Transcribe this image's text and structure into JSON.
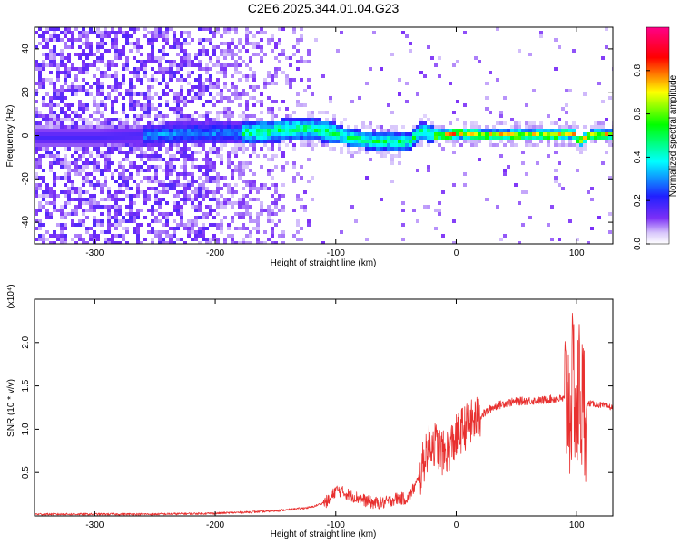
{
  "figure": {
    "title": "C2E6.2025.344.01.04.G23"
  },
  "colors": {
    "snr_line": "#e8302f",
    "axis": "#000000",
    "background": "#ffffff"
  },
  "chart_data": [
    {
      "type": "heatmap",
      "title": "",
      "xlabel": "Height of straight line (km)",
      "ylabel": "Frequency (Hz)",
      "xlim": [
        -350,
        130
      ],
      "ylim": [
        -50,
        50
      ],
      "x_ticks": [
        -300,
        -200,
        -100,
        0,
        100
      ],
      "x_tick_labels": [
        "-300",
        "-200",
        "-100",
        "0",
        "100"
      ],
      "y_ticks": [
        -40,
        -20,
        0,
        20,
        40
      ],
      "y_tick_labels": [
        "-40",
        "-20",
        "0",
        "20",
        "40"
      ],
      "colorbar": {
        "label": "Normalized spectral amplitude",
        "range": [
          0,
          1
        ],
        "ticks": [
          0.0,
          0.2,
          0.4,
          0.6,
          0.8
        ],
        "tick_labels": [
          "0.0",
          "0.2",
          "0.4",
          "0.6",
          "0.8"
        ],
        "colormap": [
          "#ffffff",
          "#7b2ff7",
          "#0000ff",
          "#00ffff",
          "#00ff00",
          "#ffff00",
          "#ff0000",
          "#ff00aa"
        ]
      },
      "ridge": [
        [
          -350,
          0
        ],
        [
          -300,
          0
        ],
        [
          -260,
          1
        ],
        [
          -220,
          2
        ],
        [
          -180,
          2
        ],
        [
          -150,
          3
        ],
        [
          -130,
          4
        ],
        [
          -110,
          3
        ],
        [
          -90,
          0
        ],
        [
          -70,
          -2
        ],
        [
          -55,
          -2
        ],
        [
          -40,
          -2
        ],
        [
          -30,
          3
        ],
        [
          -20,
          1
        ],
        [
          -10,
          1
        ],
        [
          0,
          2
        ],
        [
          20,
          1
        ],
        [
          40,
          1
        ],
        [
          60,
          1
        ],
        [
          80,
          1
        ],
        [
          95,
          2
        ],
        [
          100,
          -2
        ],
        [
          110,
          1
        ],
        [
          130,
          1
        ]
      ],
      "grid": false,
      "legend": "none"
    },
    {
      "type": "line",
      "title": "",
      "xlabel": "Height of straight line (km)",
      "ylabel": "SNR (10 * v/v)",
      "y_multiplier": "(x10⁴)",
      "xlim": [
        -350,
        130
      ],
      "ylim": [
        0,
        2.5
      ],
      "x_ticks": [
        -300,
        -200,
        -100,
        0,
        100
      ],
      "x_tick_labels": [
        "-300",
        "-200",
        "-100",
        "0",
        "100"
      ],
      "y_ticks": [
        0.5,
        1.0,
        1.5,
        2.0
      ],
      "y_tick_labels": [
        "0.5",
        "1.0",
        "1.5",
        "2.0"
      ],
      "series": [
        {
          "x": [
            -350,
            -300,
            -250,
            -200,
            -180,
            -160,
            -140,
            -120,
            -105,
            -100,
            -90,
            -80,
            -70,
            -60,
            -50,
            -40,
            -30,
            -25,
            -20,
            -15,
            -10,
            -5,
            0,
            5,
            10,
            20,
            30,
            40,
            50,
            60,
            70,
            80,
            90,
            95,
            98,
            100,
            102,
            105,
            110,
            120,
            130
          ],
          "y": [
            0.02,
            0.02,
            0.02,
            0.03,
            0.04,
            0.05,
            0.07,
            0.1,
            0.18,
            0.3,
            0.25,
            0.2,
            0.15,
            0.15,
            0.2,
            0.2,
            0.45,
            0.75,
            0.85,
            0.8,
            0.7,
            0.8,
            0.9,
            1.0,
            1.05,
            1.15,
            1.25,
            1.3,
            1.32,
            1.33,
            1.33,
            1.35,
            1.35,
            1.3,
            1.6,
            1.0,
            1.5,
            1.2,
            1.3,
            1.28,
            1.25
          ]
        }
      ],
      "grid": false,
      "legend": "none"
    }
  ]
}
